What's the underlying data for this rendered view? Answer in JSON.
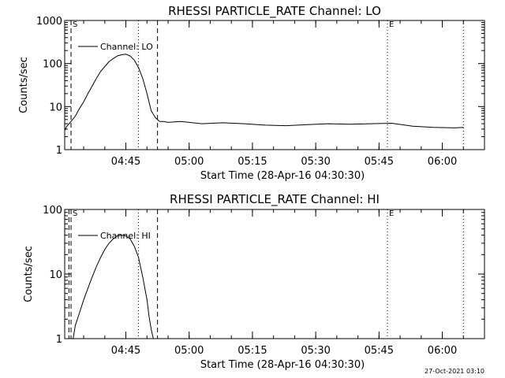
{
  "chart_data": [
    {
      "type": "line",
      "title": "RHESSI PARTICLE_RATE Channel: LO",
      "xlabel": "Start Time (28-Apr-16 04:30:30)",
      "ylabel": "Counts/sec",
      "yscale": "log",
      "ylim": [
        1,
        1000
      ],
      "yticks": [
        1,
        10,
        100,
        1000
      ],
      "ytick_labels": [
        "1",
        "10",
        "100",
        "1000"
      ],
      "xlim": [
        "04:30:30",
        "06:10:00"
      ],
      "xticks": [
        "04:45",
        "05:00",
        "05:15",
        "05:30",
        "05:45",
        "06:00"
      ],
      "legend": {
        "placement": "top-left",
        "entries": [
          "Channel: LO"
        ]
      },
      "markers": [
        {
          "time": "04:30:30",
          "style": "dashed"
        },
        {
          "time": "04:32:00",
          "style": "dashed",
          "label": "S"
        },
        {
          "time": "04:48:00",
          "style": "dotted"
        },
        {
          "time": "04:52:30",
          "style": "dashed"
        },
        {
          "time": "05:47:00",
          "style": "dotted",
          "label": "E"
        },
        {
          "time": "06:05:00",
          "style": "dotted"
        }
      ],
      "series": [
        {
          "name": "Channel: LO",
          "x": [
            "04:30:30",
            "04:31:00",
            "04:32:00",
            "04:33:00",
            "04:34:00",
            "04:35:00",
            "04:36:00",
            "04:37:00",
            "04:38:00",
            "04:39:00",
            "04:40:00",
            "04:41:00",
            "04:42:00",
            "04:43:00",
            "04:44:00",
            "04:45:00",
            "04:46:00",
            "04:47:00",
            "04:48:00",
            "04:49:00",
            "04:50:00",
            "04:51:00",
            "04:52:00",
            "04:53:00",
            "04:54:00",
            "04:55:00",
            "04:58:00",
            "05:03:00",
            "05:08:00",
            "05:13:00",
            "05:18:00",
            "05:23:00",
            "05:28:00",
            "05:33:00",
            "05:38:00",
            "05:43:00",
            "05:48:00",
            "05:53:00",
            "05:58:00",
            "06:03:00",
            "06:05:00"
          ],
          "y": [
            2.8,
            3.5,
            4.5,
            6,
            9,
            13,
            20,
            30,
            45,
            65,
            85,
            110,
            130,
            150,
            160,
            165,
            150,
            120,
            80,
            45,
            20,
            8,
            5.5,
            4.5,
            4.5,
            4.3,
            4.5,
            4.0,
            4.2,
            4.0,
            3.7,
            3.6,
            3.8,
            4.0,
            3.9,
            4.0,
            4.1,
            3.5,
            3.3,
            3.2,
            3.3
          ]
        }
      ]
    },
    {
      "type": "line",
      "title": "RHESSI PARTICLE_RATE Channel: HI",
      "xlabel": "Start Time (28-Apr-16 04:30:30)",
      "ylabel": "Counts/sec",
      "yscale": "log",
      "ylim": [
        1,
        100
      ],
      "yticks": [
        1,
        10,
        100
      ],
      "ytick_labels": [
        "1",
        "10",
        "100"
      ],
      "xlim": [
        "04:30:30",
        "06:10:00"
      ],
      "xticks": [
        "04:45",
        "05:00",
        "05:15",
        "05:30",
        "05:45",
        "06:00"
      ],
      "legend": {
        "placement": "top-left",
        "entries": [
          "Channel: HI"
        ]
      },
      "markers": [
        {
          "time": "04:31:30",
          "style": "dashed"
        },
        {
          "time": "04:32:00",
          "style": "dashed",
          "label": "S"
        },
        {
          "time": "04:48:00",
          "style": "dotted"
        },
        {
          "time": "04:52:30",
          "style": "dashed"
        },
        {
          "time": "05:47:00",
          "style": "dotted",
          "label": "E"
        },
        {
          "time": "06:05:00",
          "style": "dotted"
        }
      ],
      "series": [
        {
          "name": "Channel: HI",
          "x": [
            "04:32:30",
            "04:33:00",
            "04:34:00",
            "04:35:00",
            "04:36:00",
            "04:37:00",
            "04:38:00",
            "04:39:00",
            "04:40:00",
            "04:41:00",
            "04:42:00",
            "04:43:00",
            "04:44:00",
            "04:45:00",
            "04:46:00",
            "04:47:00",
            "04:48:00",
            "04:49:00",
            "04:50:00",
            "04:50:30",
            "04:51:00",
            "04:51:30"
          ],
          "y": [
            1.0,
            1.6,
            2.5,
            4,
            6,
            9,
            13,
            18,
            24,
            30,
            35,
            39,
            40,
            39,
            35,
            27,
            18,
            9,
            4,
            2.2,
            1.4,
            1.0
          ]
        }
      ]
    }
  ],
  "timestamp": "27-Oct-2021 03:10"
}
